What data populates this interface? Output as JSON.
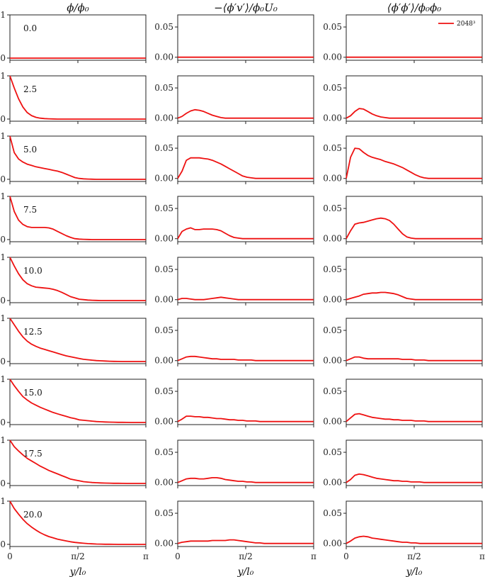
{
  "chart_data": {
    "type": "line",
    "column_titles": [
      "ϕ/ϕ₀",
      "−⟨ϕ′v′⟩/ϕ₀U₀",
      "⟨ϕ′ϕ′⟩/ϕ₀ϕ₀"
    ],
    "row_labels": [
      "0.0",
      "2.5",
      "5.0",
      "7.5",
      "10.0",
      "12.5",
      "15.0",
      "17.5",
      "20.0"
    ],
    "xlabel": "y/l₀",
    "xlim": [
      0,
      3.14159
    ],
    "xticks": [
      0,
      1.5708,
      3.14159
    ],
    "xticklabels": [
      "0",
      "π/2",
      "π"
    ],
    "column_yticks": [
      [
        0,
        1
      ],
      [
        0.0,
        0.05
      ],
      [
        0.0,
        0.05
      ]
    ],
    "column_yticklabels": [
      [
        "0",
        "1"
      ],
      [
        "0.00",
        "0.05"
      ],
      [
        "0.00",
        "0.05"
      ]
    ],
    "column_ylim": [
      [
        -0.05,
        1.0
      ],
      [
        -0.005,
        0.07
      ],
      [
        -0.005,
        0.07
      ]
    ],
    "legend": {
      "label": "2048³",
      "location": "top-right",
      "color": "#ee1111"
    },
    "series_color": "#ee1111",
    "x": [
      0,
      0.1,
      0.2,
      0.3,
      0.4,
      0.5,
      0.6,
      0.7,
      0.8,
      0.9,
      1.0,
      1.1,
      1.2,
      1.3,
      1.4,
      1.5,
      1.6,
      1.7,
      1.8,
      1.9,
      2.0,
      2.1,
      2.2,
      2.3,
      2.4,
      2.5,
      2.6,
      2.7,
      2.8,
      2.9,
      3.0,
      3.1,
      3.14
    ],
    "panels": [
      [
        [
          0,
          0,
          0,
          0,
          0,
          0,
          0,
          0,
          0,
          0,
          0,
          0,
          0,
          0,
          0,
          0,
          0,
          0,
          0,
          0,
          0,
          0,
          0,
          0,
          0,
          0,
          0,
          0,
          0,
          0,
          0,
          0,
          0
        ],
        [
          0,
          0,
          0,
          0,
          0,
          0,
          0,
          0,
          0,
          0,
          0,
          0,
          0,
          0,
          0,
          0,
          0,
          0,
          0,
          0,
          0,
          0,
          0,
          0,
          0,
          0,
          0,
          0,
          0,
          0,
          0,
          0,
          0
        ],
        [
          0,
          0,
          0,
          0,
          0,
          0,
          0,
          0,
          0,
          0,
          0,
          0,
          0,
          0,
          0,
          0,
          0,
          0,
          0,
          0,
          0,
          0,
          0,
          0,
          0,
          0,
          0,
          0,
          0,
          0,
          0,
          0,
          0
        ]
      ],
      [
        [
          1.0,
          0.72,
          0.47,
          0.28,
          0.15,
          0.08,
          0.04,
          0.02,
          0.01,
          0.005,
          0.002,
          0,
          0,
          0,
          0,
          0,
          0,
          0,
          0,
          0,
          0,
          0,
          0,
          0,
          0,
          0,
          0,
          0,
          0,
          0,
          0,
          0,
          0
        ],
        [
          0,
          0.003,
          0.008,
          0.012,
          0.014,
          0.013,
          0.011,
          0.008,
          0.005,
          0.003,
          0.001,
          0,
          0,
          0,
          0,
          0,
          0,
          0,
          0,
          0,
          0,
          0,
          0,
          0,
          0,
          0,
          0,
          0,
          0,
          0,
          0,
          0,
          0
        ],
        [
          0,
          0.004,
          0.011,
          0.016,
          0.015,
          0.011,
          0.007,
          0.004,
          0.002,
          0.001,
          0,
          0,
          0,
          0,
          0,
          0,
          0,
          0,
          0,
          0,
          0,
          0,
          0,
          0,
          0,
          0,
          0,
          0,
          0,
          0,
          0,
          0,
          0
        ]
      ],
      [
        [
          1.0,
          0.62,
          0.47,
          0.4,
          0.35,
          0.32,
          0.29,
          0.27,
          0.25,
          0.23,
          0.21,
          0.19,
          0.16,
          0.12,
          0.08,
          0.04,
          0.02,
          0.01,
          0.005,
          0.002,
          0,
          0,
          0,
          0,
          0,
          0,
          0,
          0,
          0,
          0,
          0,
          0,
          0
        ],
        [
          0,
          0.012,
          0.03,
          0.034,
          0.034,
          0.034,
          0.033,
          0.032,
          0.03,
          0.027,
          0.024,
          0.02,
          0.016,
          0.012,
          0.008,
          0.004,
          0.002,
          0.001,
          0,
          0,
          0,
          0,
          0,
          0,
          0,
          0,
          0,
          0,
          0,
          0,
          0,
          0,
          0
        ],
        [
          0,
          0.035,
          0.05,
          0.049,
          0.043,
          0.038,
          0.035,
          0.033,
          0.031,
          0.028,
          0.026,
          0.024,
          0.021,
          0.018,
          0.014,
          0.01,
          0.006,
          0.003,
          0.001,
          0,
          0,
          0,
          0,
          0,
          0,
          0,
          0,
          0,
          0,
          0,
          0,
          0,
          0
        ]
      ],
      [
        [
          1.0,
          0.65,
          0.45,
          0.35,
          0.3,
          0.28,
          0.28,
          0.28,
          0.28,
          0.27,
          0.24,
          0.19,
          0.14,
          0.09,
          0.05,
          0.02,
          0.01,
          0.005,
          0.002,
          0,
          0,
          0,
          0,
          0,
          0,
          0,
          0,
          0,
          0,
          0,
          0,
          0,
          0
        ],
        [
          0,
          0.012,
          0.016,
          0.018,
          0.015,
          0.015,
          0.016,
          0.016,
          0.016,
          0.015,
          0.013,
          0.009,
          0.005,
          0.002,
          0.001,
          0,
          0,
          0,
          0,
          0,
          0,
          0,
          0,
          0,
          0,
          0,
          0,
          0,
          0,
          0,
          0,
          0,
          0
        ],
        [
          0,
          0.013,
          0.024,
          0.026,
          0.027,
          0.029,
          0.031,
          0.033,
          0.034,
          0.033,
          0.03,
          0.024,
          0.016,
          0.008,
          0.003,
          0.001,
          0,
          0,
          0,
          0,
          0,
          0,
          0,
          0,
          0,
          0,
          0,
          0,
          0,
          0,
          0,
          0,
          0
        ]
      ],
      [
        [
          1.0,
          0.8,
          0.62,
          0.48,
          0.39,
          0.34,
          0.31,
          0.3,
          0.29,
          0.28,
          0.26,
          0.23,
          0.19,
          0.14,
          0.09,
          0.06,
          0.03,
          0.02,
          0.01,
          0.005,
          0.002,
          0,
          0,
          0,
          0,
          0,
          0,
          0,
          0,
          0,
          0,
          0,
          0
        ],
        [
          0,
          0.002,
          0.002,
          0.001,
          0,
          0,
          0,
          0.001,
          0.002,
          0.003,
          0.004,
          0.003,
          0.002,
          0.001,
          0,
          0,
          0,
          0,
          0,
          0,
          0,
          0,
          0,
          0,
          0,
          0,
          0,
          0,
          0,
          0,
          0,
          0,
          0
        ],
        [
          0,
          0.002,
          0.004,
          0.006,
          0.009,
          0.01,
          0.011,
          0.011,
          0.012,
          0.012,
          0.011,
          0.01,
          0.008,
          0.005,
          0.002,
          0.001,
          0,
          0,
          0,
          0,
          0,
          0,
          0,
          0,
          0,
          0,
          0,
          0,
          0,
          0,
          0,
          0,
          0
        ]
      ],
      [
        [
          1.0,
          0.85,
          0.7,
          0.57,
          0.47,
          0.4,
          0.35,
          0.31,
          0.28,
          0.25,
          0.22,
          0.19,
          0.16,
          0.13,
          0.11,
          0.09,
          0.07,
          0.05,
          0.04,
          0.03,
          0.02,
          0.015,
          0.01,
          0.005,
          0.003,
          0.001,
          0,
          0,
          0,
          0,
          0,
          0,
          0
        ],
        [
          0,
          0.003,
          0.006,
          0.007,
          0.007,
          0.006,
          0.005,
          0.004,
          0.003,
          0.003,
          0.002,
          0.002,
          0.002,
          0.002,
          0.001,
          0.001,
          0.001,
          0.001,
          0,
          0,
          0,
          0,
          0,
          0,
          0,
          0,
          0,
          0,
          0,
          0,
          0,
          0,
          0
        ],
        [
          0,
          0.003,
          0.006,
          0.006,
          0.004,
          0.003,
          0.003,
          0.003,
          0.003,
          0.003,
          0.003,
          0.003,
          0.003,
          0.002,
          0.002,
          0.002,
          0.001,
          0.001,
          0.001,
          0,
          0,
          0,
          0,
          0,
          0,
          0,
          0,
          0,
          0,
          0,
          0,
          0,
          0
        ]
      ],
      [
        [
          1.0,
          0.85,
          0.72,
          0.6,
          0.52,
          0.45,
          0.4,
          0.35,
          0.31,
          0.27,
          0.23,
          0.2,
          0.17,
          0.14,
          0.11,
          0.09,
          0.06,
          0.05,
          0.04,
          0.03,
          0.02,
          0.015,
          0.01,
          0.007,
          0.005,
          0.003,
          0.002,
          0.001,
          0,
          0,
          0,
          0,
          0
        ],
        [
          0,
          0.004,
          0.009,
          0.009,
          0.008,
          0.008,
          0.007,
          0.007,
          0.006,
          0.005,
          0.005,
          0.004,
          0.003,
          0.003,
          0.002,
          0.002,
          0.001,
          0.001,
          0.001,
          0,
          0,
          0,
          0,
          0,
          0,
          0,
          0,
          0,
          0,
          0,
          0,
          0,
          0
        ],
        [
          0,
          0.006,
          0.012,
          0.013,
          0.011,
          0.009,
          0.007,
          0.006,
          0.005,
          0.004,
          0.004,
          0.003,
          0.003,
          0.002,
          0.002,
          0.002,
          0.001,
          0.001,
          0.001,
          0,
          0,
          0,
          0,
          0,
          0,
          0,
          0,
          0,
          0,
          0,
          0,
          0,
          0
        ]
      ],
      [
        [
          1.0,
          0.85,
          0.75,
          0.66,
          0.58,
          0.52,
          0.46,
          0.4,
          0.35,
          0.3,
          0.26,
          0.22,
          0.18,
          0.14,
          0.1,
          0.08,
          0.06,
          0.04,
          0.03,
          0.02,
          0.015,
          0.01,
          0.007,
          0.005,
          0.003,
          0.002,
          0.001,
          0,
          0,
          0,
          0,
          0,
          0
        ],
        [
          0,
          0.003,
          0.006,
          0.007,
          0.007,
          0.006,
          0.006,
          0.007,
          0.008,
          0.008,
          0.007,
          0.005,
          0.004,
          0.003,
          0.002,
          0.002,
          0.001,
          0.001,
          0,
          0,
          0,
          0,
          0,
          0,
          0,
          0,
          0,
          0,
          0,
          0,
          0,
          0,
          0
        ],
        [
          0,
          0.005,
          0.012,
          0.014,
          0.013,
          0.011,
          0.009,
          0.007,
          0.006,
          0.005,
          0.004,
          0.003,
          0.003,
          0.002,
          0.002,
          0.001,
          0.001,
          0.001,
          0,
          0,
          0,
          0,
          0,
          0,
          0,
          0,
          0,
          0,
          0,
          0,
          0,
          0,
          0
        ]
      ],
      [
        [
          1.0,
          0.83,
          0.7,
          0.58,
          0.48,
          0.4,
          0.33,
          0.27,
          0.22,
          0.18,
          0.15,
          0.12,
          0.1,
          0.08,
          0.06,
          0.045,
          0.035,
          0.025,
          0.018,
          0.012,
          0.008,
          0.005,
          0.003,
          0.002,
          0.001,
          0,
          0,
          0,
          0,
          0,
          0,
          0,
          0
        ],
        [
          0,
          0.002,
          0.003,
          0.004,
          0.004,
          0.004,
          0.004,
          0.004,
          0.005,
          0.005,
          0.005,
          0.005,
          0.006,
          0.006,
          0.005,
          0.004,
          0.003,
          0.002,
          0.001,
          0.001,
          0,
          0,
          0,
          0,
          0,
          0,
          0,
          0,
          0,
          0,
          0,
          0,
          0
        ],
        [
          0,
          0.004,
          0.009,
          0.011,
          0.012,
          0.011,
          0.009,
          0.008,
          0.007,
          0.006,
          0.005,
          0.004,
          0.003,
          0.002,
          0.002,
          0.001,
          0.001,
          0,
          0,
          0,
          0,
          0,
          0,
          0,
          0,
          0,
          0,
          0,
          0,
          0,
          0,
          0,
          0
        ]
      ]
    ]
  }
}
